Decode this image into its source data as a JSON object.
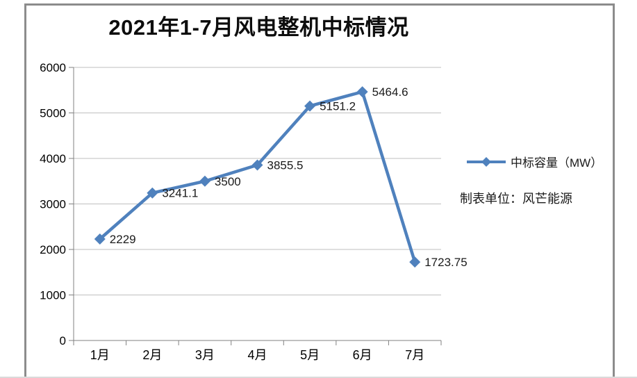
{
  "window": {
    "background": "#ffffff",
    "frame_border_color": "#8c8c8c",
    "bottom_edge_color": "#dadada"
  },
  "chart_data": {
    "type": "line",
    "title": "2021年1-7月风电整机中标情况",
    "categories": [
      "1月",
      "2月",
      "3月",
      "4月",
      "5月",
      "6月",
      "7月"
    ],
    "series": [
      {
        "name": "中标容量（MW）",
        "values": [
          2229,
          3241.1,
          3500,
          3855.5,
          5151.2,
          5464.6,
          1723.75
        ],
        "color": "#4f81bd",
        "marker": "diamond"
      }
    ],
    "data_labels": [
      "2229",
      "3241.1",
      "3500",
      "3855.5",
      "5151.2",
      "5464.6",
      "1723.75"
    ],
    "xlabel": "",
    "ylabel": "",
    "ylim": [
      0,
      6000
    ],
    "ytick_step": 1000,
    "yticks": [
      "0",
      "1000",
      "2000",
      "3000",
      "4000",
      "5000",
      "6000"
    ],
    "grid": "horizontal",
    "gridline_color": "#bfbfbf",
    "axis_color": "#808080",
    "tick_label_color": "#000000",
    "data_label_color": "#1a1a1a",
    "legend_position": "right"
  },
  "legend": {
    "label": "中标容量（MW）",
    "marker_color": "#4f81bd"
  },
  "annotation": {
    "text": "制表单位：风芒能源"
  }
}
